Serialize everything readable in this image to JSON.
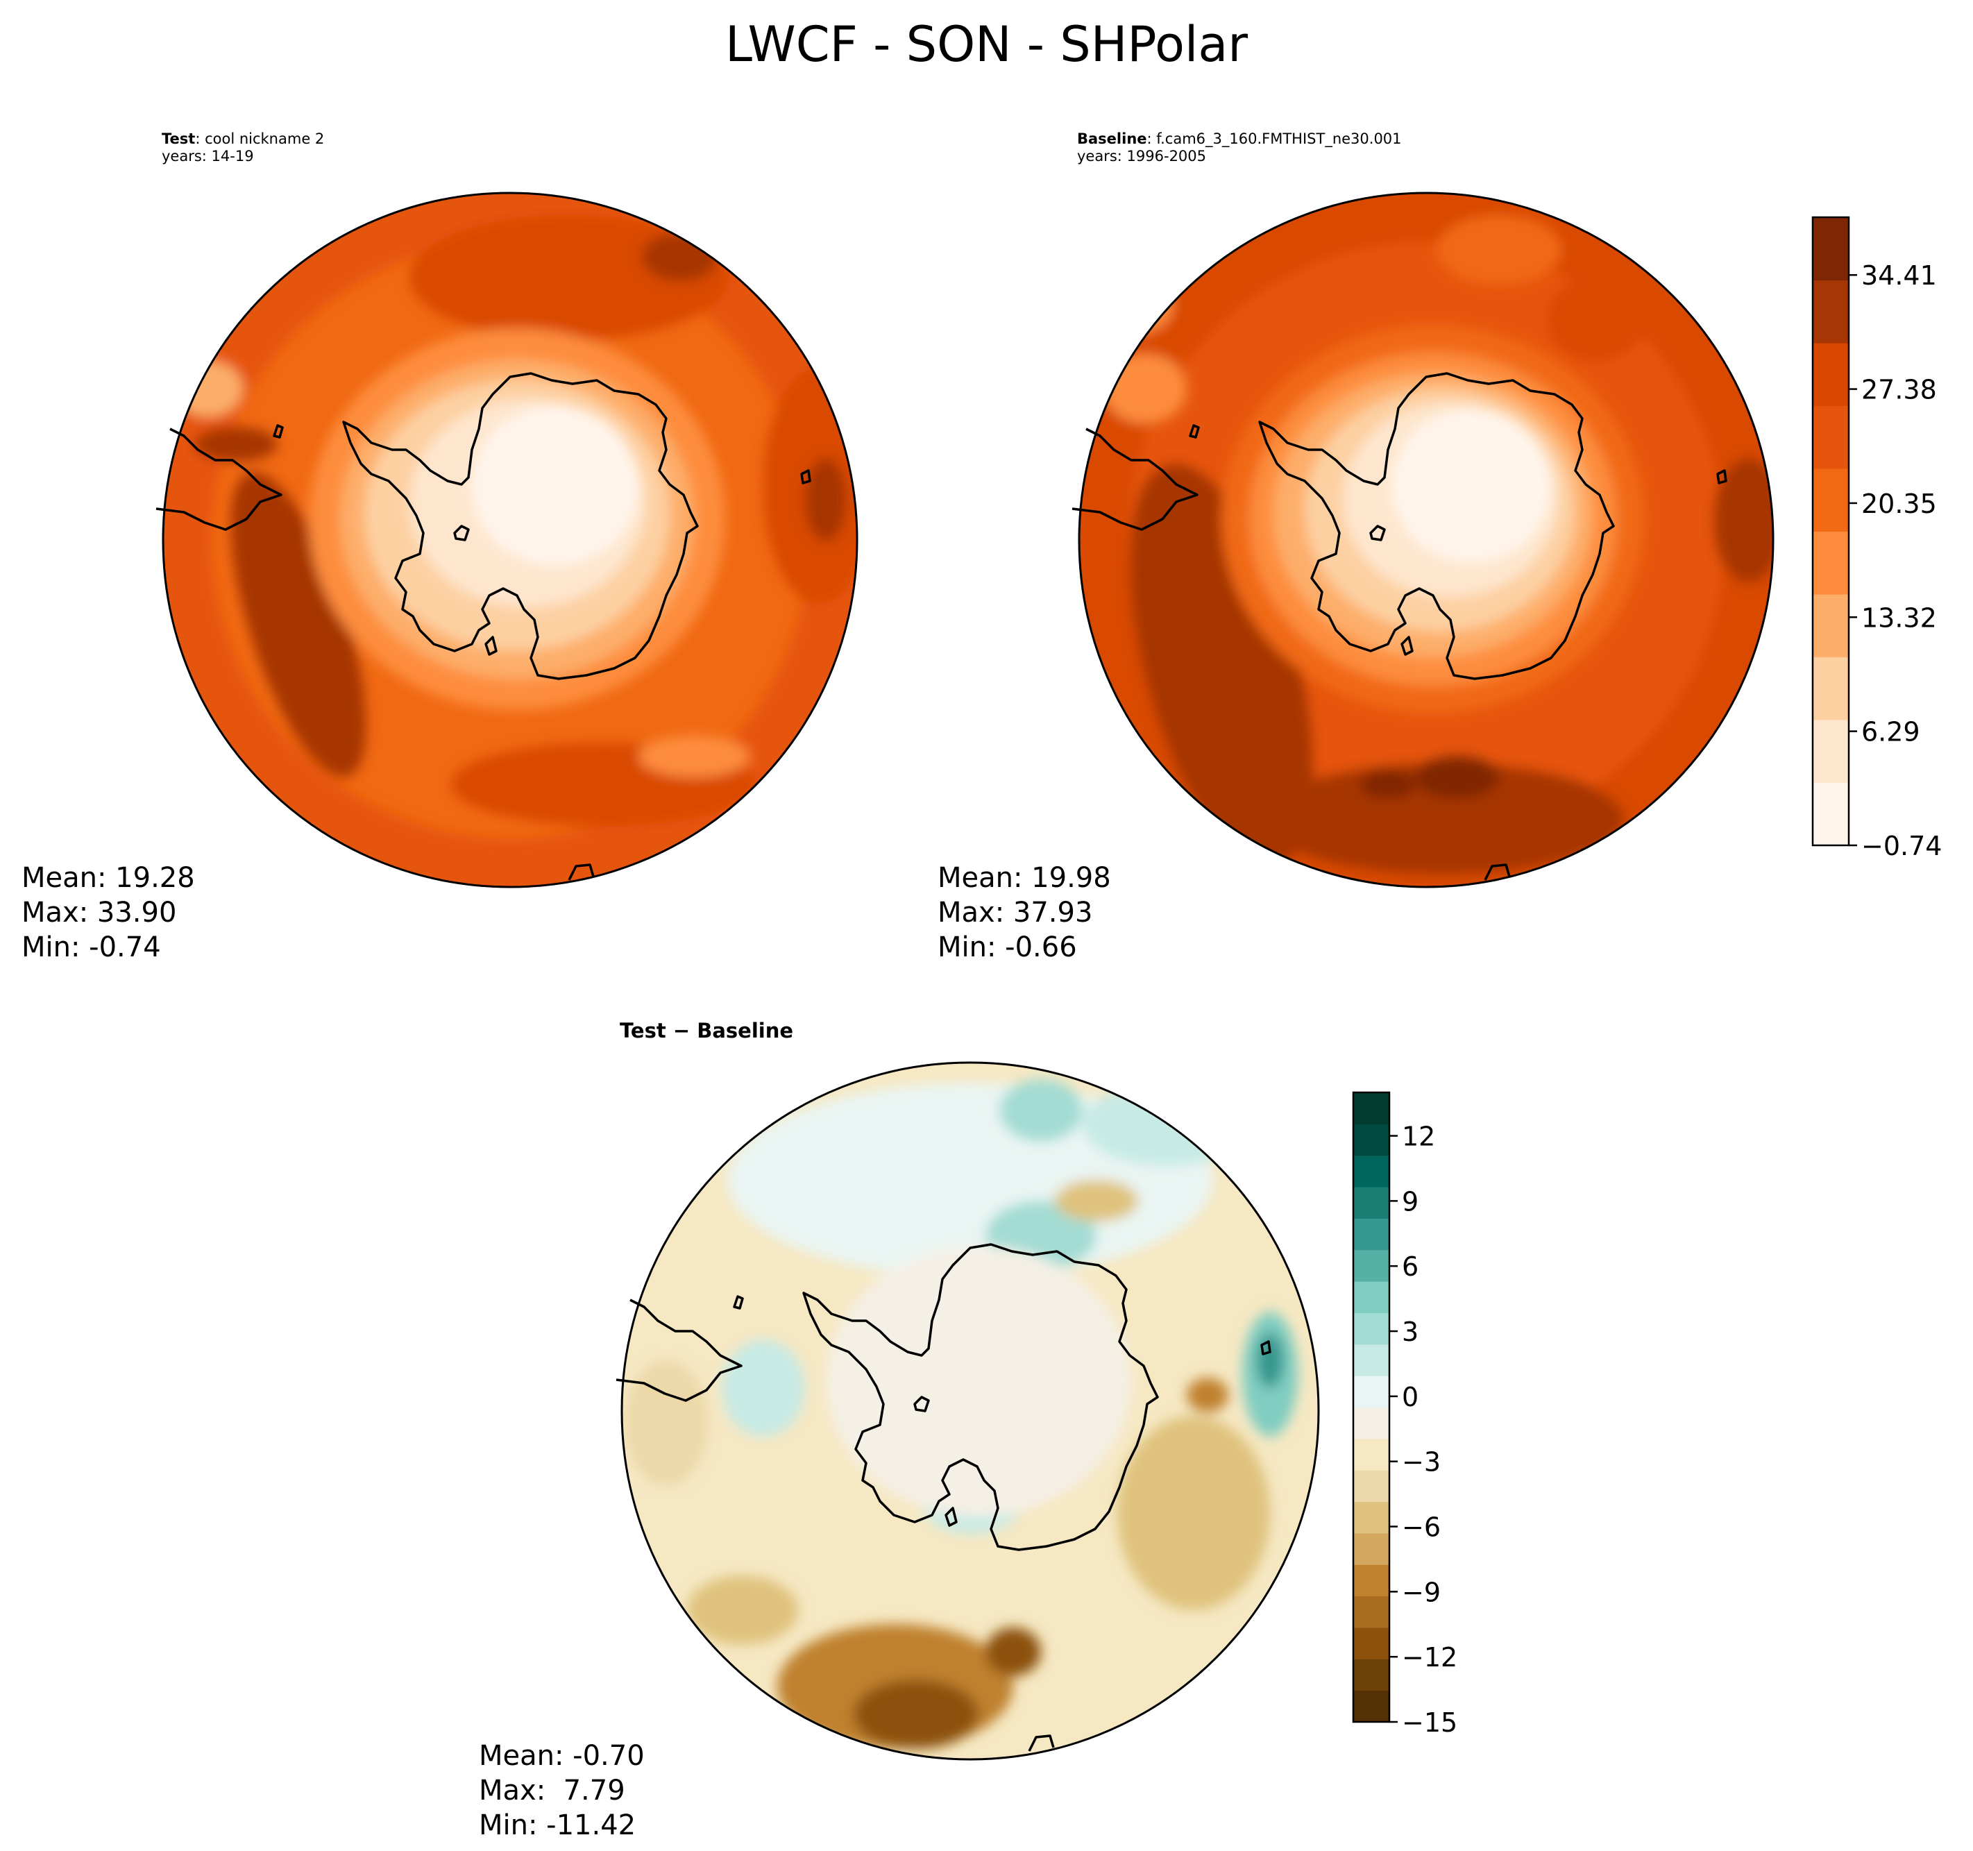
{
  "title": "LWCF - SON - SHPolar",
  "panels": {
    "test": {
      "header_label": "Test",
      "header_text": ": cool nickname 2",
      "years": "years: 14-19",
      "stats": [
        "Mean: 19.28",
        "Max: 33.90",
        "Min: -0.74"
      ]
    },
    "baseline": {
      "header_label": "Baseline",
      "header_text": ": f.cam6_3_160.FMTHIST_ne30.001",
      "years": "years: 1996-2005",
      "stats": [
        "Mean: 19.98",
        "Max: 37.93",
        "Min: -0.66"
      ]
    },
    "diff": {
      "title": "Test − Baseline",
      "stats": [
        "Mean: -0.70",
        "Max:  7.79",
        "Min: -11.42"
      ]
    }
  },
  "colorbars": {
    "main": {
      "ticks": [
        "−0.74",
        "6.29",
        "13.32",
        "20.35",
        "27.38",
        "34.41"
      ],
      "colors": [
        "#fff5eb",
        "#fee6ce",
        "#fdd0a2",
        "#fdae6b",
        "#fd8d3c",
        "#f16913",
        "#e6550d",
        "#d94801",
        "#a63603",
        "#7f2704"
      ]
    },
    "diff": {
      "ticks": [
        "−15",
        "−12",
        "−9",
        "−6",
        "−3",
        "0",
        "3",
        "6",
        "9",
        "12"
      ],
      "colors": [
        "#543005",
        "#6e410b",
        "#8c510a",
        "#a86c1f",
        "#bf812d",
        "#d4a75f",
        "#dfc27d",
        "#ecd8a9",
        "#f6e8c3",
        "#f5f0e6",
        "#eaf5f3",
        "#c7eae5",
        "#a3dcd3",
        "#80cdc1",
        "#55b1a6",
        "#35978f",
        "#1b7e75",
        "#01665e",
        "#004a40",
        "#003c30"
      ]
    }
  },
  "chart_data": [
    {
      "type": "heatmap",
      "title": "LWCF - SON - SHPolar",
      "subtitle": "Test: cool nickname 2, years: 14-19",
      "projection": "south polar stereographic",
      "colormap": "Oranges",
      "levels_min": -0.74,
      "levels_max": 38.0,
      "mean": 19.28,
      "max": 33.9,
      "min": -0.74
    },
    {
      "type": "heatmap",
      "subtitle": "Baseline: f.cam6_3_160.FMTHIST_ne30.001, years: 1996-2005",
      "projection": "south polar stereographic",
      "colormap": "Oranges",
      "colorbar_ticks": [
        -0.74,
        6.29,
        13.32,
        20.35,
        27.38,
        34.41
      ],
      "mean": 19.98,
      "max": 37.93,
      "min": -0.66
    },
    {
      "type": "heatmap",
      "subtitle": "Test − Baseline",
      "projection": "south polar stereographic",
      "colormap": "BrBG",
      "colorbar_ticks": [
        -15,
        -12,
        -9,
        -6,
        -3,
        0,
        3,
        6,
        9,
        12
      ],
      "colorbar_range": [
        -15,
        14
      ],
      "mean": -0.7,
      "max": 7.79,
      "min": -11.42
    }
  ]
}
